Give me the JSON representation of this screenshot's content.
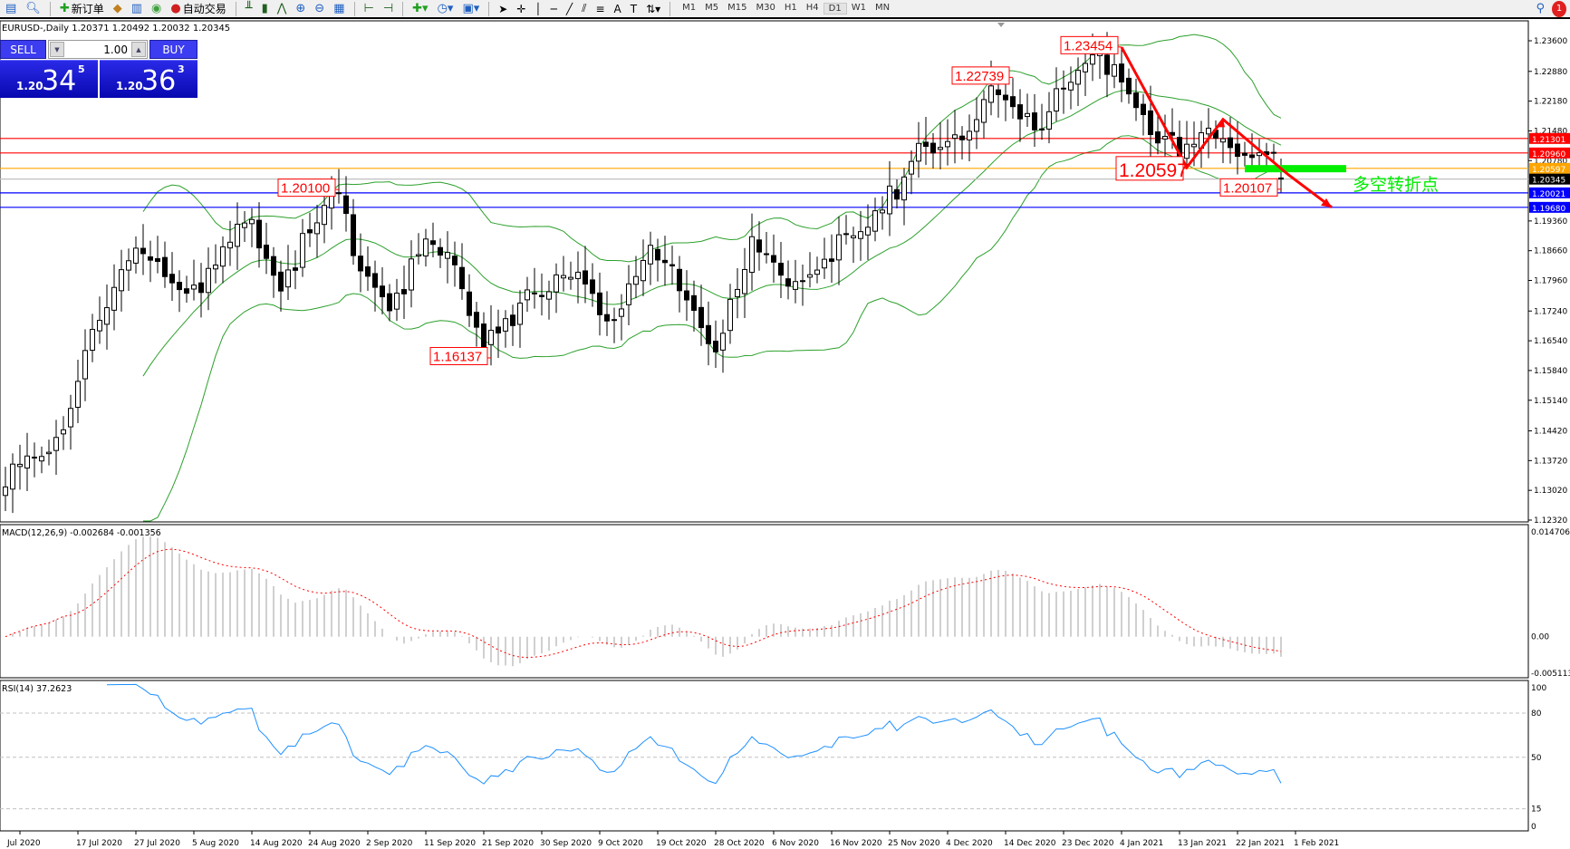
{
  "toolbar": {
    "items": [
      {
        "icon": "new-order-icon",
        "label": "新订单"
      },
      {
        "icon": "auto-trading-icon",
        "label": "自动交易"
      }
    ],
    "timeframes": [
      "M1",
      "M5",
      "M15",
      "M30",
      "H1",
      "H4",
      "D1",
      "W1",
      "MN"
    ],
    "active_timeframe": "D1",
    "notification_count": "1"
  },
  "chart": {
    "title": "EURUSD-,Daily  1.20371 1.20492 1.20032 1.20345"
  },
  "trade_panel": {
    "sell_label": "SELL",
    "buy_label": "BUY",
    "lot": "1.00",
    "sell_price": {
      "big": "1.20",
      "main": "34",
      "pip": "5"
    },
    "buy_price": {
      "big": "1.20",
      "main": "36",
      "pip": "3"
    }
  },
  "chart_data": {
    "type": "candlestick",
    "symbol": "EURUSD-",
    "timeframe": "Daily",
    "ylim": [
      1.1232,
      1.236
    ],
    "price_ticks": [
      "1.23600",
      "1.22880",
      "1.22180",
      "1.21480",
      "1.20780",
      "1.19360",
      "1.18660",
      "1.17960",
      "1.17240",
      "1.16540",
      "1.15840",
      "1.15140",
      "1.14420",
      "1.13720",
      "1.13020",
      "1.12320"
    ],
    "close_anchors": [
      [
        0,
        1.131
      ],
      [
        7,
        1.144
      ],
      [
        15,
        1.177
      ],
      [
        19,
        1.189
      ],
      [
        27,
        1.176
      ],
      [
        34,
        1.195
      ],
      [
        38,
        1.18
      ],
      [
        46,
        1.2
      ],
      [
        49,
        1.184
      ],
      [
        53,
        1.176
      ],
      [
        58,
        1.186
      ],
      [
        62,
        1.183
      ],
      [
        66,
        1.167
      ],
      [
        70,
        1.172
      ],
      [
        76,
        1.177
      ],
      [
        79,
        1.182
      ],
      [
        84,
        1.171
      ],
      [
        89,
        1.184
      ],
      [
        95,
        1.175
      ],
      [
        98,
        1.164
      ],
      [
        101,
        1.175
      ],
      [
        103,
        1.187
      ],
      [
        107,
        1.178
      ],
      [
        113,
        1.187
      ],
      [
        118,
        1.188
      ],
      [
        121,
        1.195
      ],
      [
        125,
        1.21
      ],
      [
        127,
        1.214
      ],
      [
        131,
        1.21
      ],
      [
        138,
        1.226
      ],
      [
        142,
        1.217
      ],
      [
        146,
        1.222
      ],
      [
        149,
        1.229
      ],
      [
        153,
        1.233
      ],
      [
        156,
        1.222
      ],
      [
        162,
        1.208
      ],
      [
        165,
        1.213
      ],
      [
        167,
        1.217
      ],
      [
        171,
        1.211
      ],
      [
        173,
        1.213
      ],
      [
        175,
        1.207
      ],
      [
        176,
        1.20345
      ]
    ],
    "date_labels": [
      "Jul 2020",
      "17 Jul 2020",
      "27 Jul 2020",
      "5 Aug 2020",
      "14 Aug 2020",
      "24 Aug 2020",
      "2 Sep 2020",
      "11 Sep 2020",
      "21 Sep 2020",
      "30 Sep 2020",
      "9 Oct 2020",
      "19 Oct 2020",
      "28 Oct 2020",
      "6 Nov 2020",
      "16 Nov 2020",
      "25 Nov 2020",
      "4 Dec 2020",
      "14 Dec 2020",
      "23 Dec 2020",
      "4 Jan 2021",
      "13 Jan 2021",
      "22 Jan 2021",
      "1 Feb 2021"
    ],
    "hlines": [
      {
        "price": 1.21301,
        "label": "1.21301",
        "color": "#ff0000"
      },
      {
        "price": 1.2096,
        "label": "1.20960",
        "color": "#ff0000"
      },
      {
        "price": 1.20597,
        "label": "1.20597",
        "color": "#ffa500"
      },
      {
        "price": 1.20345,
        "label": "1.20345",
        "color": "#c0c0c0",
        "tag": "#000000"
      },
      {
        "price": 1.20021,
        "label": "1.20021",
        "color": "#0000ff"
      },
      {
        "price": 1.1968,
        "label": "1.19680",
        "color": "#0000ff"
      }
    ],
    "annotations": [
      {
        "text": "1.23454",
        "bar": 154,
        "price": 1.23454
      },
      {
        "text": "1.22739",
        "bar": 139,
        "price": 1.22739
      },
      {
        "text": "1.20100",
        "bar": 46,
        "price": 1.201
      },
      {
        "text": "1.16137",
        "bar": 67,
        "price": 1.16137
      },
      {
        "text": "1.20597",
        "bar": 163,
        "price": 1.20597,
        "large": true
      },
      {
        "text": "1.20107",
        "bar": 176,
        "price": 1.20107
      }
    ],
    "trend_arrow": [
      [
        154,
        1.2345
      ],
      [
        163,
        1.2062
      ],
      [
        168,
        1.2175
      ],
      [
        177,
        1.2045
      ],
      [
        183,
        1.1968
      ]
    ],
    "pivot_zone": {
      "price": 1.2059,
      "from_bar": 171,
      "to_bar": 185,
      "color": "#00ee00",
      "label": "多空转折点"
    },
    "bollinger": {
      "period": 20,
      "deviation": 2,
      "color": "#2ca02c"
    },
    "macd": {
      "label": "MACD(12,26,9) -0.002684 -0.001356",
      "ticks": [
        "0.014706",
        "0.00",
        "-0.005113"
      ],
      "ylim": [
        -0.005113,
        0.014706
      ]
    },
    "rsi": {
      "label": "RSI(14) 37.2623",
      "ticks": [
        "100",
        "80",
        "50",
        "15",
        "0"
      ],
      "levels": [
        80,
        50,
        15
      ],
      "color": "#1e90ff"
    }
  }
}
